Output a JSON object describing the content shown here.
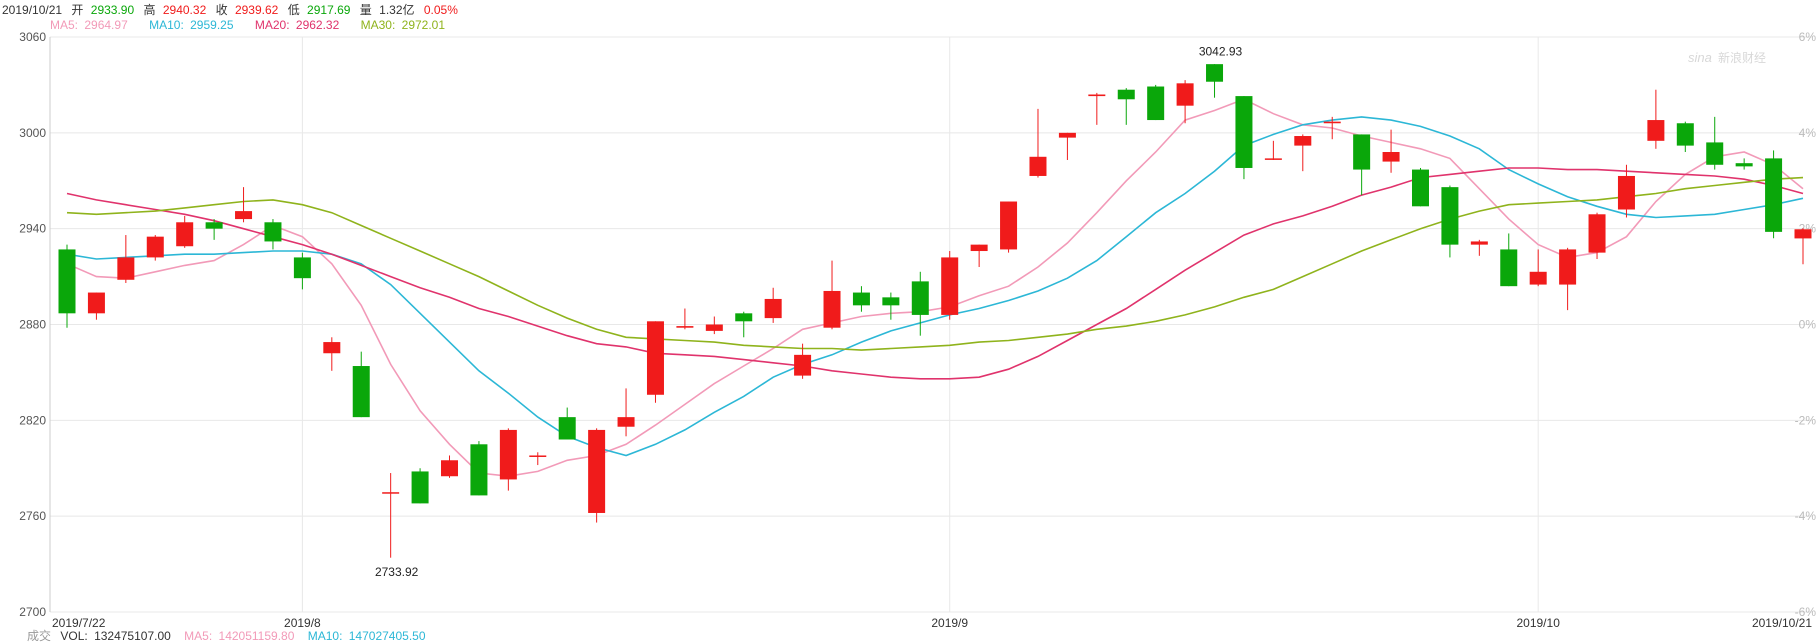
{
  "header": {
    "date": "2019/10/21",
    "open_label": "开",
    "open": "2933.90",
    "high_label": "高",
    "high": "2940.32",
    "close_label": "收",
    "close": "2939.62",
    "low_label": "低",
    "low": "2917.69",
    "volume_label": "量",
    "volume": "1.32亿",
    "change": "0.05%"
  },
  "ma_legend": [
    {
      "label": "MA5:",
      "value": "2964.97",
      "color": "#f29ab8"
    },
    {
      "label": "MA10:",
      "value": "2959.25",
      "color": "#2cb7d6"
    },
    {
      "label": "MA20:",
      "value": "2962.32",
      "color": "#e0336c"
    },
    {
      "label": "MA30:",
      "value": "2972.01",
      "color": "#8fb31c"
    }
  ],
  "footer": {
    "label": "成交",
    "vol_label": "VOL:",
    "vol": "132475107.00",
    "ma5_label": "MA5:",
    "ma5": "142051159.80",
    "ma10_label": "MA10:",
    "ma10": "147027405.50"
  },
  "watermark": "新浪财经",
  "colors": {
    "up": "#f01b1b",
    "down": "#0aa70a",
    "grid": "#e8e8e8",
    "axis_text": "#555555"
  },
  "chart_data": {
    "type": "candlestick",
    "ylim": [
      2700,
      3060
    ],
    "yticks": [
      3060,
      3000,
      2940,
      2880,
      2820,
      2760,
      2700
    ],
    "right_axis_ticks": [
      "6%",
      "4%",
      "2%",
      "0%",
      "-2%",
      "-4%",
      "-6%"
    ],
    "x_labels": [
      {
        "index": 0,
        "label": "2019/7/22"
      },
      {
        "index": 8,
        "label": "2019/8"
      },
      {
        "index": 30,
        "label": "2019/9"
      },
      {
        "index": 50,
        "label": "2019/10"
      },
      {
        "index": 58,
        "label": "2019/10/21"
      }
    ],
    "annotations": [
      {
        "index": 11,
        "text": "2733.92",
        "value": 2733.92
      },
      {
        "index": 39,
        "text": "3042.93",
        "value": 3042.93
      }
    ],
    "candles": [
      {
        "o": 2927,
        "h": 2930,
        "l": 2878,
        "c": 2887
      },
      {
        "o": 2887,
        "h": 2900,
        "l": 2883,
        "c": 2900
      },
      {
        "o": 2908,
        "h": 2936,
        "l": 2906,
        "c": 2922
      },
      {
        "o": 2922,
        "h": 2936,
        "l": 2920,
        "c": 2935
      },
      {
        "o": 2929,
        "h": 2948,
        "l": 2928,
        "c": 2944
      },
      {
        "o": 2944,
        "h": 2946,
        "l": 2933,
        "c": 2940
      },
      {
        "o": 2946,
        "h": 2966,
        "l": 2944,
        "c": 2951
      },
      {
        "o": 2944,
        "h": 2946,
        "l": 2927,
        "c": 2932
      },
      {
        "o": 2922,
        "h": 2925,
        "l": 2902,
        "c": 2909
      },
      {
        "o": 2862,
        "h": 2872,
        "l": 2851,
        "c": 2869
      },
      {
        "o": 2854,
        "h": 2863,
        "l": 2822,
        "c": 2822
      },
      {
        "o": 2775,
        "h": 2787,
        "l": 2734,
        "c": 2775
      },
      {
        "o": 2788,
        "h": 2790,
        "l": 2768,
        "c": 2768
      },
      {
        "o": 2785,
        "h": 2798,
        "l": 2784,
        "c": 2795
      },
      {
        "o": 2805,
        "h": 2807,
        "l": 2773,
        "c": 2773
      },
      {
        "o": 2783,
        "h": 2815,
        "l": 2776,
        "c": 2814
      },
      {
        "o": 2798,
        "h": 2800,
        "l": 2792,
        "c": 2798
      },
      {
        "o": 2822,
        "h": 2828,
        "l": 2808,
        "c": 2808
      },
      {
        "o": 2762,
        "h": 2815,
        "l": 2756,
        "c": 2814
      },
      {
        "o": 2816,
        "h": 2840,
        "l": 2810,
        "c": 2822
      },
      {
        "o": 2836,
        "h": 2882,
        "l": 2831,
        "c": 2882
      },
      {
        "o": 2878,
        "h": 2890,
        "l": 2877,
        "c": 2879
      },
      {
        "o": 2876,
        "h": 2885,
        "l": 2874,
        "c": 2880
      },
      {
        "o": 2887,
        "h": 2888,
        "l": 2872,
        "c": 2882
      },
      {
        "o": 2884,
        "h": 2903,
        "l": 2881,
        "c": 2896
      },
      {
        "o": 2848,
        "h": 2868,
        "l": 2846,
        "c": 2861
      },
      {
        "o": 2878,
        "h": 2920,
        "l": 2877,
        "c": 2901
      },
      {
        "o": 2900,
        "h": 2904,
        "l": 2888,
        "c": 2892
      },
      {
        "o": 2897,
        "h": 2900,
        "l": 2883,
        "c": 2892
      },
      {
        "o": 2907,
        "h": 2913,
        "l": 2873,
        "c": 2886
      },
      {
        "o": 2886,
        "h": 2926,
        "l": 2883,
        "c": 2922
      },
      {
        "o": 2926,
        "h": 2930,
        "l": 2916,
        "c": 2930
      },
      {
        "o": 2927,
        "h": 2957,
        "l": 2925,
        "c": 2957
      },
      {
        "o": 2973,
        "h": 3015,
        "l": 2972,
        "c": 2985
      },
      {
        "o": 2997,
        "h": 3000,
        "l": 2983,
        "c": 3000
      },
      {
        "o": 3023,
        "h": 3025,
        "l": 3005,
        "c": 3024
      },
      {
        "o": 3027,
        "h": 3028,
        "l": 3005,
        "c": 3021
      },
      {
        "o": 3029,
        "h": 3030,
        "l": 3008,
        "c": 3008
      },
      {
        "o": 3017,
        "h": 3033,
        "l": 3006,
        "c": 3031
      },
      {
        "o": 3043,
        "h": 3043,
        "l": 3022,
        "c": 3032
      },
      {
        "o": 3023,
        "h": 3023,
        "l": 2971,
        "c": 2978
      },
      {
        "o": 2984,
        "h": 2995,
        "l": 2983,
        "c": 2984
      },
      {
        "o": 2992,
        "h": 2999,
        "l": 2976,
        "c": 2998
      },
      {
        "o": 3006,
        "h": 3010,
        "l": 2996,
        "c": 3007
      },
      {
        "o": 2999,
        "h": 2999,
        "l": 2961,
        "c": 2977
      },
      {
        "o": 2982,
        "h": 3002,
        "l": 2975,
        "c": 2988
      },
      {
        "o": 2977,
        "h": 2978,
        "l": 2954,
        "c": 2954
      },
      {
        "o": 2966,
        "h": 2967,
        "l": 2922,
        "c": 2930
      },
      {
        "o": 2930,
        "h": 2933,
        "l": 2923,
        "c": 2932
      },
      {
        "o": 2927,
        "h": 2937,
        "l": 2904,
        "c": 2904
      },
      {
        "o": 2905,
        "h": 2927,
        "l": 2904,
        "c": 2913
      },
      {
        "o": 2905,
        "h": 2928,
        "l": 2889,
        "c": 2927
      },
      {
        "o": 2925,
        "h": 2950,
        "l": 2921,
        "c": 2949
      },
      {
        "o": 2952,
        "h": 2980,
        "l": 2947,
        "c": 2973
      },
      {
        "o": 2995,
        "h": 3027,
        "l": 2990,
        "c": 3008
      },
      {
        "o": 3006,
        "h": 3007,
        "l": 2988,
        "c": 2992
      },
      {
        "o": 2994,
        "h": 3010,
        "l": 2977,
        "c": 2980
      },
      {
        "o": 2981,
        "h": 2984,
        "l": 2977,
        "c": 2979
      },
      {
        "o": 2984,
        "h": 2989,
        "l": 2934,
        "c": 2938
      },
      {
        "o": 2933.9,
        "h": 2940.32,
        "l": 2917.69,
        "c": 2939.62
      }
    ],
    "series": [
      {
        "name": "MA5",
        "color": "#f29ab8",
        "values": [
          2918,
          2910,
          2909,
          2913,
          2917,
          2920,
          2930,
          2942,
          2935,
          2918,
          2892,
          2855,
          2826,
          2805,
          2787,
          2785,
          2788,
          2795,
          2798,
          2805,
          2817,
          2830,
          2843,
          2854,
          2865,
          2877,
          2881,
          2885,
          2887,
          2888,
          2891,
          2898,
          2904,
          2916,
          2931,
          2950,
          2970,
          2988,
          3008,
          3014,
          3021,
          3012,
          3005,
          3003,
          2998,
          2994,
          2990,
          2984,
          2965,
          2946,
          2930,
          2922,
          2925,
          2935,
          2957,
          2974,
          2985,
          2988,
          2980,
          2965
        ]
      },
      {
        "name": "MA10",
        "color": "#2cb7d6",
        "values": [
          2924,
          2921,
          2922,
          2923,
          2924,
          2924,
          2925,
          2926,
          2926,
          2924,
          2918,
          2905,
          2887,
          2869,
          2851,
          2837,
          2822,
          2810,
          2803,
          2798,
          2805,
          2814,
          2825,
          2835,
          2847,
          2855,
          2861,
          2869,
          2876,
          2881,
          2886,
          2890,
          2895,
          2901,
          2909,
          2920,
          2935,
          2950,
          2962,
          2976,
          2992,
          2999,
          3005,
          3008,
          3010,
          3008,
          3004,
          2998,
          2990,
          2977,
          2968,
          2960,
          2954,
          2949,
          2947,
          2948,
          2949,
          2952,
          2955,
          2959
        ]
      },
      {
        "name": "MA20",
        "color": "#e0336c",
        "values": [
          2962,
          2958,
          2955,
          2952,
          2949,
          2945,
          2940,
          2935,
          2930,
          2924,
          2917,
          2910,
          2903,
          2897,
          2890,
          2885,
          2879,
          2873,
          2868,
          2866,
          2862,
          2861,
          2860,
          2858,
          2856,
          2854,
          2851,
          2849,
          2847,
          2846,
          2846,
          2847,
          2852,
          2860,
          2870,
          2880,
          2890,
          2902,
          2914,
          2925,
          2936,
          2943,
          2948,
          2954,
          2961,
          2966,
          2972,
          2974,
          2976,
          2978,
          2978,
          2977,
          2977,
          2976,
          2975,
          2974,
          2973,
          2971,
          2967,
          2962
        ]
      },
      {
        "name": "MA30",
        "color": "#8fb31c",
        "values": [
          2950,
          2949,
          2950,
          2951,
          2953,
          2955,
          2957,
          2958,
          2955,
          2950,
          2942,
          2934,
          2926,
          2918,
          2910,
          2901,
          2892,
          2884,
          2877,
          2872,
          2871,
          2870,
          2869,
          2867,
          2866,
          2865,
          2865,
          2864,
          2865,
          2866,
          2867,
          2869,
          2870,
          2872,
          2874,
          2877,
          2879,
          2882,
          2886,
          2891,
          2897,
          2902,
          2910,
          2918,
          2926,
          2933,
          2940,
          2946,
          2951,
          2955,
          2956,
          2957,
          2958,
          2960,
          2962,
          2965,
          2967,
          2969,
          2971,
          2972
        ]
      }
    ]
  }
}
